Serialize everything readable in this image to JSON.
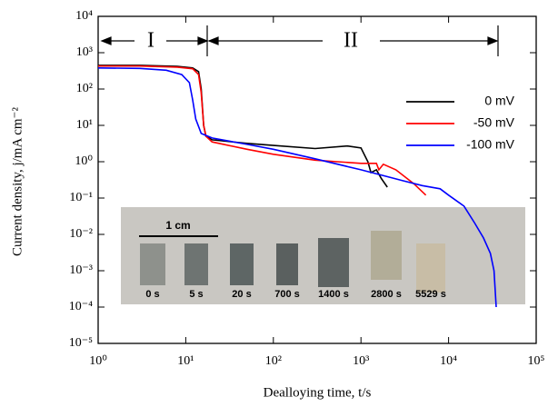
{
  "chart_data": {
    "type": "line",
    "xlabel": "Dealloying time, t/s",
    "ylabel": "Current density, j/mA cm⁻²",
    "xscale": "log",
    "yscale": "log",
    "xlim": [
      1,
      100000
    ],
    "ylim": [
      1e-05,
      10000
    ],
    "xticks": [
      {
        "value": 1,
        "label": "10⁰"
      },
      {
        "value": 10,
        "label": "10¹"
      },
      {
        "value": 100,
        "label": "10²"
      },
      {
        "value": 1000,
        "label": "10³"
      },
      {
        "value": 10000,
        "label": "10⁴"
      },
      {
        "value": 100000,
        "label": "10⁵"
      }
    ],
    "yticks": [
      {
        "value": 1e-05,
        "label": "10⁻⁵"
      },
      {
        "value": 0.0001,
        "label": "10⁻⁴"
      },
      {
        "value": 0.001,
        "label": "10⁻³"
      },
      {
        "value": 0.01,
        "label": "10⁻²"
      },
      {
        "value": 0.1,
        "label": "10⁻¹"
      },
      {
        "value": 1,
        "label": "10⁰"
      },
      {
        "value": 10,
        "label": "10¹"
      },
      {
        "value": 100,
        "label": "10²"
      },
      {
        "value": 1000,
        "label": "10³"
      },
      {
        "value": 10000,
        "label": "10⁴"
      }
    ],
    "legend": "upper right",
    "series": [
      {
        "name": "0 mV",
        "color": "#000000",
        "x": [
          1,
          3,
          8,
          12,
          14,
          15,
          16,
          17,
          20,
          50,
          100,
          300,
          700,
          1000,
          1200,
          1300,
          1500,
          1700,
          2000
        ],
        "values": [
          450,
          450,
          420,
          380,
          300,
          100,
          10,
          5,
          4,
          3.2,
          2.8,
          2.3,
          2.7,
          2.4,
          1.0,
          0.5,
          0.6,
          0.35,
          0.2
        ]
      },
      {
        "name": "-50 mV",
        "color": "#ff0000",
        "x": [
          1,
          3,
          8,
          12,
          14,
          15,
          16,
          17,
          20,
          50,
          100,
          300,
          1000,
          1500,
          1600,
          1800,
          2500,
          4000,
          5500
        ],
        "values": [
          430,
          430,
          400,
          360,
          250,
          80,
          10,
          5,
          3.5,
          2.2,
          1.6,
          1.1,
          0.9,
          0.9,
          0.6,
          0.85,
          0.6,
          0.25,
          0.12
        ]
      },
      {
        "name": "-100 mV",
        "color": "#0000ff",
        "x": [
          1,
          3,
          6,
          9,
          11,
          12,
          13,
          15,
          20,
          50,
          100,
          300,
          1000,
          3000,
          5000,
          8000,
          10000,
          15000,
          20000,
          25000,
          30000,
          33000,
          35000
        ],
        "values": [
          380,
          370,
          330,
          250,
          150,
          50,
          15,
          6,
          4.5,
          3,
          2.2,
          1.2,
          0.6,
          0.3,
          0.22,
          0.18,
          0.12,
          0.06,
          0.02,
          0.008,
          0.003,
          0.001,
          0.0001
        ]
      }
    ],
    "annotations": [
      "I",
      "II"
    ],
    "inset": {
      "scale_label": "1 cm",
      "labels": [
        "0 s",
        "5 s",
        "20 s",
        "700 s",
        "1400 s",
        "2800 s",
        "5529 s"
      ]
    }
  }
}
